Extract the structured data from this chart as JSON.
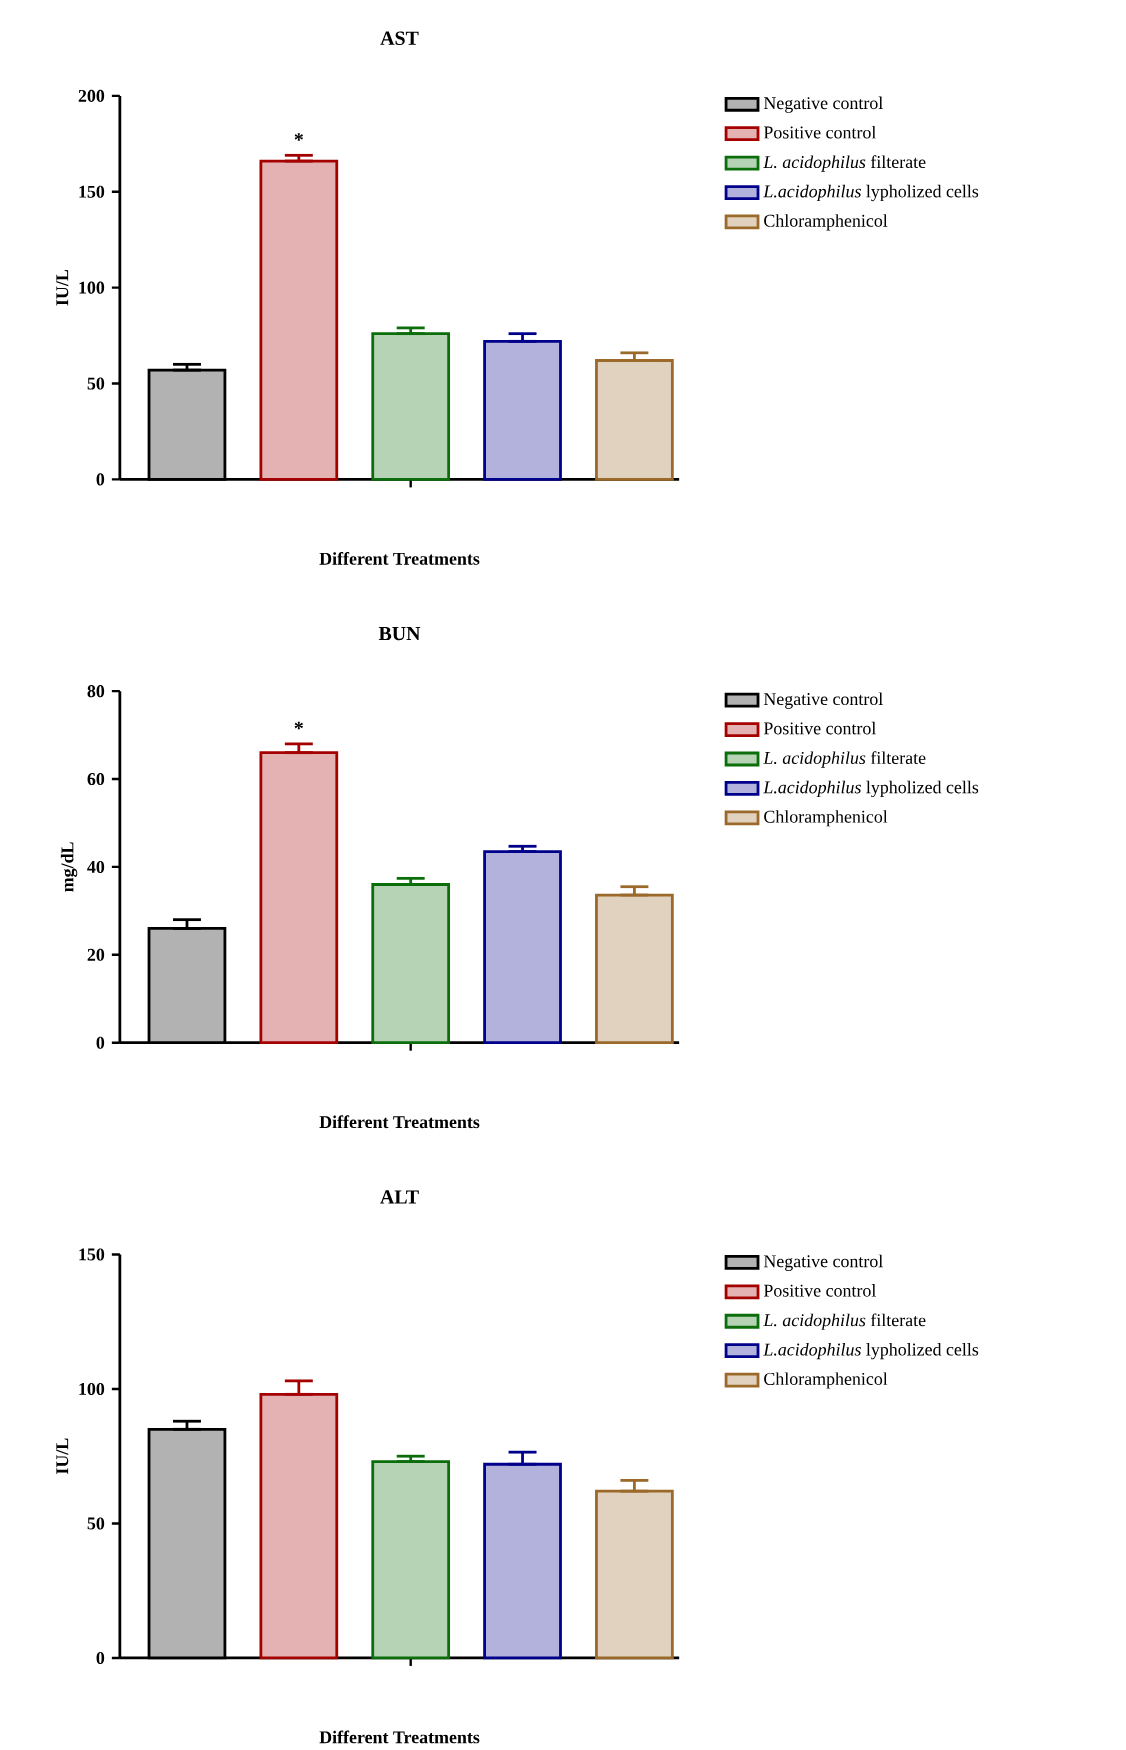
{
  "chart_data": [
    {
      "type": "bar",
      "title": "AST",
      "xlabel": "Different Treatments",
      "ylabel": "IU/L",
      "categories": [
        null,
        null,
        null,
        null,
        null
      ],
      "ylim": [
        0,
        200
      ],
      "yticks": [
        0,
        50,
        100,
        150,
        200
      ],
      "legend": "right",
      "annotations": [
        "*"
      ],
      "series": [
        {
          "name": "Negative control",
          "color": "#000000",
          "values": [
            57,
            null,
            null,
            null,
            null
          ],
          "errors": [
            [
              57,
              60
            ],
            null,
            null,
            null,
            null
          ]
        },
        {
          "name": "Positive control",
          "color": "#a50000",
          "values": [
            null,
            166,
            null,
            null,
            null
          ],
          "errors": [
            null,
            [
              166,
              169
            ],
            null,
            null,
            null
          ]
        },
        {
          "name": "*L. acidophilus* filterate",
          "color": "#0b6e0b",
          "values": [
            null,
            null,
            76,
            null,
            null
          ],
          "errors": [
            null,
            null,
            [
              76,
              79
            ],
            null,
            null
          ]
        },
        {
          "name": "*L.acidophilus* lypholized cells",
          "color": "#00008b",
          "values": [
            null,
            null,
            null,
            72,
            null
          ],
          "errors": [
            null,
            null,
            null,
            [
              72,
              76
            ],
            null
          ]
        },
        {
          "name": "Chloramphenicol",
          "color": "#9b6a2a",
          "values": [
            null,
            null,
            null,
            null,
            62
          ],
          "errors": [
            null,
            null,
            null,
            null,
            [
              62,
              66
            ]
          ]
        }
      ]
    },
    {
      "type": "bar",
      "title": "BUN",
      "xlabel": "Different Treatments",
      "ylabel": "mg/dL",
      "categories": [
        null,
        null,
        null,
        null,
        null
      ],
      "ylim": [
        0,
        80
      ],
      "yticks": [
        0,
        20,
        40,
        60,
        80
      ],
      "legend": "right",
      "annotations": [
        "*"
      ],
      "series": [
        {
          "name": "Negative control",
          "color": "#000000",
          "values": [
            26,
            null,
            null,
            null,
            null
          ],
          "errors": [
            [
              26,
              28
            ],
            null,
            null,
            null,
            null
          ]
        },
        {
          "name": "Positive control",
          "color": "#a50000",
          "values": [
            null,
            66,
            null,
            null,
            null
          ],
          "errors": [
            null,
            [
              66,
              68
            ],
            null,
            null,
            null
          ]
        },
        {
          "name": "*L. acidophilus* filterate",
          "color": "#0b6e0b",
          "values": [
            null,
            null,
            36,
            null,
            null
          ],
          "errors": [
            null,
            null,
            [
              36,
              37.4
            ],
            null,
            null
          ]
        },
        {
          "name": "*L.acidophilus* lypholized cells",
          "color": "#00008b",
          "values": [
            null,
            null,
            null,
            43.5,
            null
          ],
          "errors": [
            null,
            null,
            null,
            [
              43.5,
              44.7
            ],
            null
          ]
        },
        {
          "name": "Chloramphenicol",
          "color": "#9b6a2a",
          "values": [
            null,
            null,
            null,
            null,
            33.6
          ],
          "errors": [
            null,
            null,
            null,
            null,
            [
              33.6,
              35.5
            ]
          ]
        }
      ]
    },
    {
      "type": "bar",
      "title": "ALT",
      "xlabel": "Different Treatments",
      "ylabel": "IU/L",
      "categories": [
        null,
        null,
        null,
        null,
        null
      ],
      "ylim": [
        0,
        150
      ],
      "yticks": [
        0,
        50,
        100,
        150
      ],
      "legend": "right",
      "series": [
        {
          "name": "Negative control",
          "color": "#000000",
          "values": [
            85,
            null,
            null,
            null,
            null
          ],
          "errors": [
            [
              85,
              88
            ],
            null,
            null,
            null,
            null
          ]
        },
        {
          "name": "Positive control",
          "color": "#a50000",
          "values": [
            null,
            98,
            null,
            null,
            null
          ],
          "errors": [
            null,
            [
              98,
              103
            ],
            null,
            null,
            null
          ]
        },
        {
          "name": "*L. acidophilus* filterate",
          "color": "#0b6e0b",
          "values": [
            null,
            null,
            73,
            null,
            null
          ],
          "errors": [
            null,
            null,
            [
              73,
              75
            ],
            null,
            null
          ]
        },
        {
          "name": "*L.acidophilus* lypholized cells",
          "color": "#00008b",
          "values": [
            null,
            null,
            null,
            72,
            null
          ],
          "errors": [
            null,
            null,
            null,
            [
              72,
              76.5
            ],
            null
          ]
        },
        {
          "name": "Chloramphenicol",
          "color": "#9b6a2a",
          "values": [
            null,
            null,
            null,
            null,
            62
          ],
          "errors": [
            null,
            null,
            null,
            null,
            [
              62,
              66
            ]
          ]
        }
      ]
    }
  ]
}
